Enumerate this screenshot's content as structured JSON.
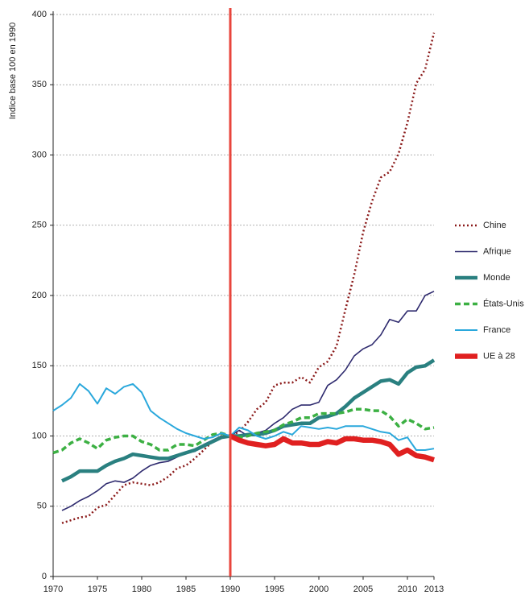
{
  "chart_data": {
    "type": "line",
    "y_label": "Indice base 100 en 1990",
    "x": [
      1970,
      1971,
      1972,
      1973,
      1974,
      1975,
      1976,
      1977,
      1978,
      1979,
      1980,
      1981,
      1982,
      1983,
      1984,
      1985,
      1986,
      1987,
      1988,
      1989,
      1990,
      1991,
      1992,
      1993,
      1994,
      1995,
      1996,
      1997,
      1998,
      1999,
      2000,
      2001,
      2002,
      2003,
      2004,
      2005,
      2006,
      2007,
      2008,
      2009,
      2010,
      2011,
      2012,
      2013
    ],
    "xlim": [
      1970,
      2013
    ],
    "xticks": [
      1970,
      1975,
      1980,
      1985,
      1990,
      1995,
      2000,
      2005,
      2010,
      2013
    ],
    "ylim": [
      0,
      400
    ],
    "yticks": [
      0,
      50,
      100,
      150,
      200,
      250,
      300,
      350,
      400
    ],
    "grid": true,
    "vline_x": 1990,
    "vline_color": "#e8453c",
    "legend": "right",
    "series": [
      {
        "name": "Chine",
        "color": "#8b1a1a",
        "style": "dotted",
        "values": [
          null,
          38,
          40,
          42,
          43,
          49,
          51,
          58,
          65,
          67,
          66,
          65,
          67,
          71,
          77,
          79,
          84,
          90,
          96,
          100,
          100,
          103,
          110,
          119,
          124,
          136,
          138,
          138,
          142,
          138,
          149,
          153,
          164,
          190,
          215,
          245,
          267,
          284,
          288,
          301,
          323,
          351,
          361,
          387
        ]
      },
      {
        "name": "Afrique",
        "color": "#2e2a6e",
        "style": "thin",
        "values": [
          null,
          47,
          50,
          54,
          57,
          61,
          66,
          68,
          67,
          70,
          75,
          79,
          81,
          82,
          85,
          88,
          89,
          94,
          97,
          100,
          100,
          104,
          100,
          102,
          104,
          109,
          113,
          119,
          122,
          122,
          124,
          136,
          140,
          147,
          157,
          162,
          165,
          172,
          183,
          181,
          189,
          189,
          200,
          203
        ]
      },
      {
        "name": "Monde",
        "color": "#2a8080",
        "style": "thick",
        "values": [
          null,
          68,
          71,
          75,
          75,
          75,
          79,
          82,
          84,
          87,
          86,
          85,
          84,
          84,
          86,
          88,
          90,
          93,
          96,
          99,
          100,
          100,
          101,
          101,
          102,
          104,
          107,
          108,
          109,
          109,
          113,
          114,
          116,
          121,
          127,
          131,
          135,
          139,
          140,
          137,
          145,
          149,
          150,
          154
        ]
      },
      {
        "name": "États-Unis",
        "color": "#3cb043",
        "style": "dashed",
        "values": [
          88,
          90,
          95,
          98,
          95,
          91,
          97,
          99,
          100,
          100,
          96,
          94,
          90,
          90,
          94,
          94,
          93,
          97,
          101,
          102,
          100,
          99,
          100,
          102,
          103,
          104,
          108,
          110,
          113,
          113,
          116,
          116,
          116,
          117,
          119,
          119,
          118,
          118,
          114,
          107,
          112,
          109,
          105,
          106
        ]
      },
      {
        "name": "France",
        "color": "#2aa8dc",
        "style": "medium",
        "values": [
          118,
          122,
          127,
          137,
          132,
          123,
          134,
          130,
          135,
          137,
          131,
          118,
          113,
          109,
          105,
          102,
          100,
          98,
          99,
          102,
          100,
          106,
          104,
          100,
          98,
          100,
          103,
          101,
          107,
          106,
          105,
          106,
          105,
          107,
          107,
          107,
          105,
          103,
          102,
          97,
          99,
          90,
          90,
          91
        ]
      },
      {
        "name": "UE à 28",
        "color": "#e02020",
        "style": "heavy",
        "values": [
          null,
          null,
          null,
          null,
          null,
          null,
          null,
          null,
          null,
          null,
          null,
          null,
          null,
          null,
          null,
          null,
          null,
          null,
          null,
          null,
          100,
          97,
          95,
          94,
          93,
          94,
          98,
          95,
          95,
          94,
          94,
          96,
          95,
          98,
          98,
          97,
          97,
          96,
          94,
          87,
          90,
          86,
          85,
          83
        ]
      }
    ]
  }
}
